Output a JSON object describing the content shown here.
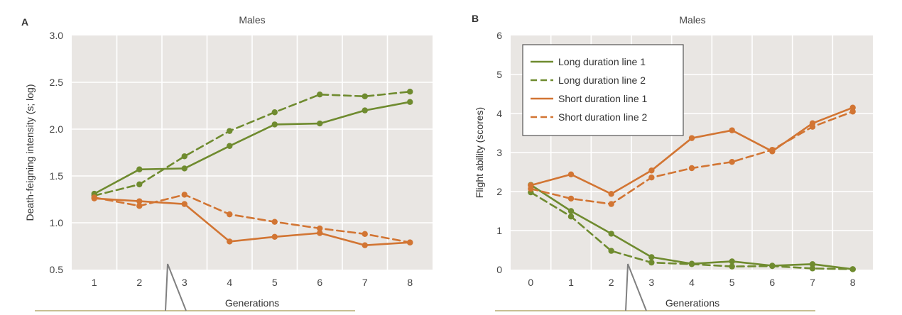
{
  "colors": {
    "long": "#6f8b2f",
    "short": "#d27533",
    "plot_bg": "#e9e6e3",
    "callout": "#c8bf93",
    "pointer": "#808080"
  },
  "chart_data": [
    {
      "type": "line",
      "panel_label": "A",
      "title": "Males",
      "xlabel": "Generations",
      "ylabel": "Death-feigning intensity (s; log)",
      "x": [
        1,
        2,
        3,
        4,
        5,
        6,
        7,
        8
      ],
      "xlim": [
        0.5,
        8.5
      ],
      "ylim": [
        0.5,
        3.0
      ],
      "xticks": [
        "1",
        "2",
        "3",
        "4",
        "5",
        "6",
        "7",
        "8"
      ],
      "yticks": [
        "0.5",
        "1.0",
        "1.5",
        "2.0",
        "2.5",
        "3.0"
      ],
      "grid": true,
      "legend": "none",
      "series": [
        {
          "line": "Long duration line 1",
          "color": "#6f8b2f",
          "dash": "solid",
          "values": [
            1.31,
            1.57,
            1.58,
            1.82,
            2.05,
            2.06,
            2.2,
            2.29
          ]
        },
        {
          "line": "Long duration line 2",
          "color": "#6f8b2f",
          "dash": "dashed",
          "values": [
            1.29,
            1.41,
            1.71,
            1.98,
            2.18,
            2.37,
            2.35,
            2.4
          ]
        },
        {
          "line": "Short duration line 1",
          "color": "#d27533",
          "dash": "solid",
          "values": [
            1.26,
            1.23,
            1.2,
            0.8,
            0.85,
            0.89,
            0.76,
            0.79
          ]
        },
        {
          "line": "Short duration line 2",
          "color": "#d27533",
          "dash": "dashed",
          "values": [
            1.27,
            1.18,
            1.3,
            1.09,
            1.01,
            0.94,
            0.88,
            0.79
          ]
        }
      ]
    },
    {
      "type": "line",
      "panel_label": "B",
      "title": "Males",
      "xlabel": "Generations",
      "ylabel": "Flight ability (scores)",
      "x": [
        0,
        1,
        2,
        3,
        4,
        5,
        6,
        7,
        8
      ],
      "xlim": [
        -0.5,
        8.5
      ],
      "ylim": [
        0,
        6
      ],
      "xticks": [
        "0",
        "1",
        "2",
        "3",
        "4",
        "5",
        "6",
        "7",
        "8"
      ],
      "yticks": [
        "0",
        "1",
        "2",
        "3",
        "4",
        "5",
        "6"
      ],
      "grid": true,
      "legend": "top-left",
      "series": [
        {
          "name": "Long duration line 1",
          "color": "#6f8b2f",
          "dash": "solid",
          "values": [
            2.17,
            1.5,
            0.92,
            0.32,
            0.15,
            0.21,
            0.1,
            0.14,
            0.01
          ]
        },
        {
          "name": "Long duration line 2",
          "color": "#6f8b2f",
          "dash": "dashed",
          "values": [
            1.98,
            1.36,
            0.48,
            0.18,
            0.14,
            0.08,
            0.09,
            0.03,
            0.01
          ]
        },
        {
          "name": "Short duration line 1",
          "color": "#d27533",
          "dash": "solid",
          "values": [
            2.16,
            2.44,
            1.94,
            2.54,
            3.37,
            3.57,
            3.03,
            3.75,
            4.15
          ]
        },
        {
          "name": "Short duration line 2",
          "color": "#d27533",
          "dash": "dashed",
          "values": [
            2.07,
            1.82,
            1.68,
            2.36,
            2.6,
            2.76,
            3.07,
            3.66,
            4.05
          ]
        }
      ]
    }
  ]
}
